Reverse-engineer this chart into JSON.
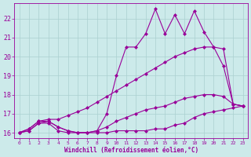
{
  "title": "",
  "xlabel": "Windchill (Refroidissement éolien,°C)",
  "ylabel": "",
  "background_color": "#cceaea",
  "grid_color": "#aad0d0",
  "line_color": "#990099",
  "xlim": [
    -0.5,
    23.5
  ],
  "ylim": [
    15.7,
    22.8
  ],
  "xticks": [
    0,
    1,
    2,
    3,
    4,
    5,
    6,
    7,
    8,
    9,
    10,
    11,
    12,
    13,
    14,
    15,
    16,
    17,
    18,
    19,
    20,
    21,
    22,
    23
  ],
  "yticks": [
    16,
    17,
    18,
    19,
    20,
    21,
    22
  ],
  "series": [
    {
      "x": [
        0,
        1,
        2,
        3,
        4,
        5,
        6,
        7,
        8,
        9,
        10,
        11,
        12,
        13,
        14,
        15,
        16,
        17,
        18,
        19,
        20,
        21,
        22,
        23
      ],
      "y": [
        16.0,
        16.1,
        16.5,
        16.5,
        16.1,
        16.0,
        16.0,
        16.0,
        16.0,
        16.0,
        16.1,
        16.1,
        16.1,
        16.1,
        16.2,
        16.2,
        16.4,
        16.5,
        16.8,
        17.0,
        17.1,
        17.2,
        17.3,
        17.4
      ],
      "marker": "D",
      "markersize": 2.0,
      "linewidth": 0.8,
      "linestyle": "-"
    },
    {
      "x": [
        0,
        1,
        2,
        3,
        4,
        5,
        6,
        7,
        8,
        9,
        10,
        11,
        12,
        13,
        14,
        15,
        16,
        17,
        18,
        19,
        20,
        21,
        22,
        23
      ],
      "y": [
        16.0,
        16.1,
        16.5,
        16.6,
        16.3,
        16.1,
        16.0,
        16.0,
        16.1,
        16.3,
        16.6,
        16.8,
        17.0,
        17.2,
        17.3,
        17.4,
        17.6,
        17.8,
        17.9,
        18.0,
        18.0,
        17.9,
        17.5,
        17.4
      ],
      "marker": "D",
      "markersize": 2.0,
      "linewidth": 0.8,
      "linestyle": "-"
    },
    {
      "x": [
        0,
        1,
        2,
        3,
        4,
        5,
        6,
        7,
        8,
        9,
        10,
        11,
        12,
        13,
        14,
        15,
        16,
        17,
        18,
        19,
        20,
        21,
        22,
        23
      ],
      "y": [
        16.0,
        16.2,
        16.6,
        16.7,
        16.7,
        16.9,
        17.1,
        17.3,
        17.6,
        17.9,
        18.2,
        18.5,
        18.8,
        19.1,
        19.4,
        19.7,
        20.0,
        20.2,
        20.4,
        20.5,
        20.5,
        19.5,
        17.5,
        17.4
      ],
      "marker": "D",
      "markersize": 2.0,
      "linewidth": 0.8,
      "linestyle": "-"
    },
    {
      "x": [
        0,
        1,
        2,
        3,
        4,
        5,
        6,
        7,
        8,
        9,
        10,
        11,
        12,
        13,
        14,
        15,
        16,
        17,
        18,
        19,
        20,
        21,
        22,
        23
      ],
      "y": [
        16.0,
        16.2,
        16.6,
        16.6,
        16.3,
        16.1,
        16.0,
        16.0,
        16.1,
        17.0,
        19.0,
        20.5,
        20.5,
        21.2,
        22.5,
        21.2,
        22.2,
        21.2,
        22.4,
        21.3,
        20.5,
        20.4,
        17.5,
        17.4
      ],
      "marker": "D",
      "markersize": 2.0,
      "linewidth": 0.8,
      "linestyle": "-"
    }
  ]
}
